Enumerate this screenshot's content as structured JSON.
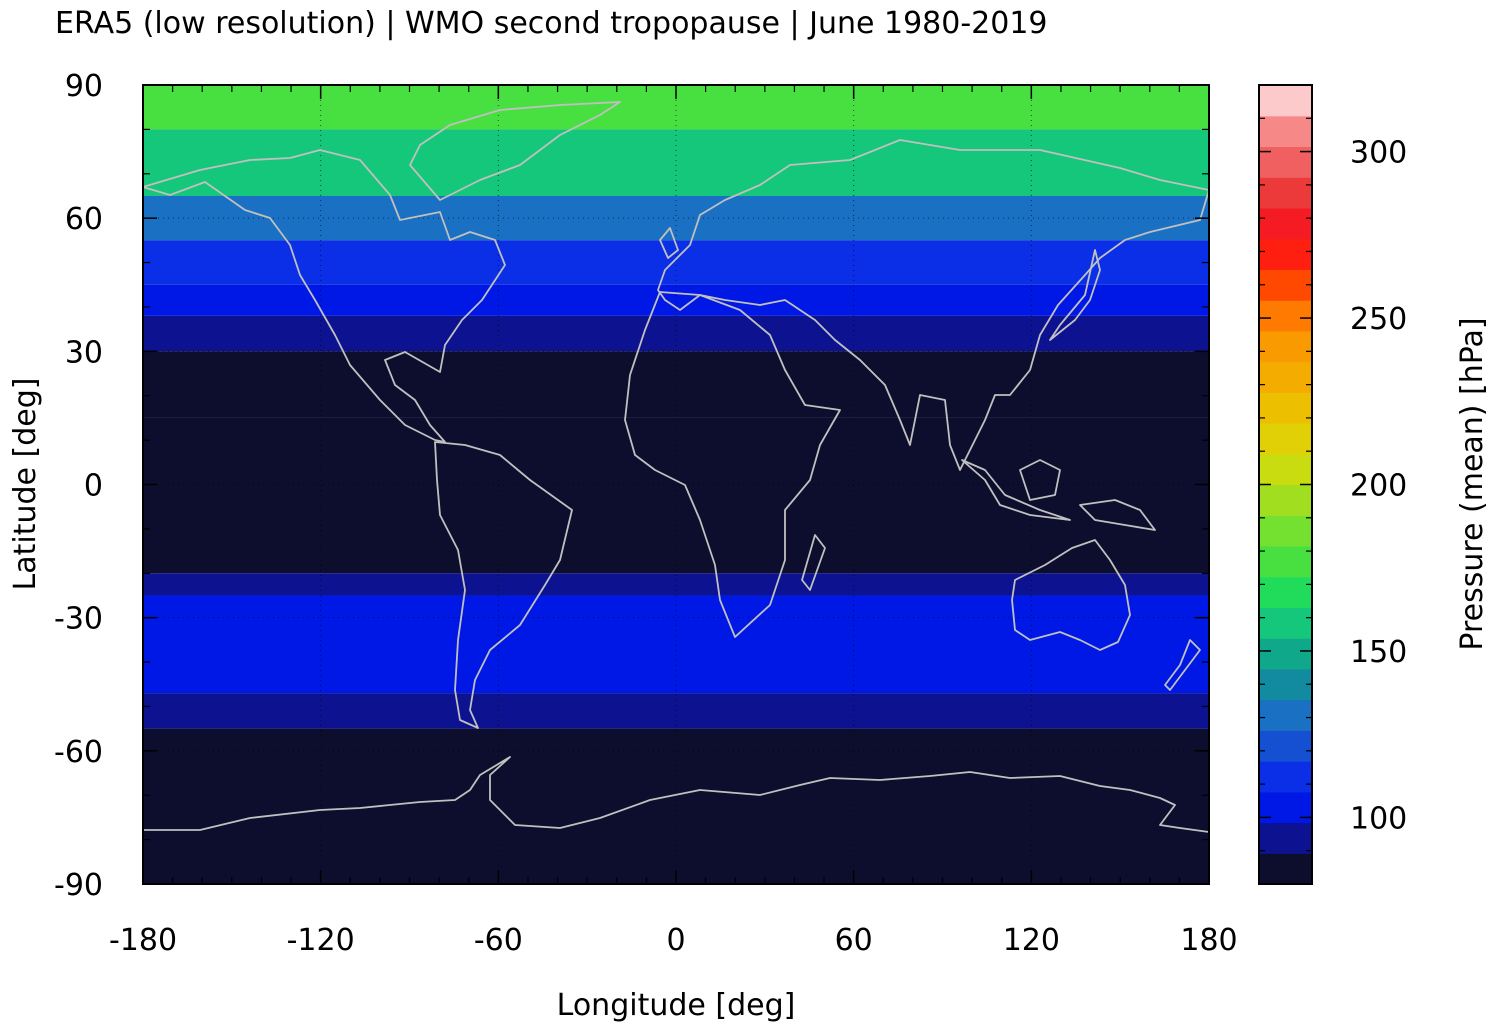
{
  "chart_data": {
    "type": "heatmap",
    "title": "ERA5 (low resolution) | WMO second tropopause | June 1980-2019",
    "xlabel": "Longitude [deg]",
    "ylabel": "Latitude [deg]",
    "xlim": [
      -180,
      180
    ],
    "ylim": [
      -90,
      90
    ],
    "xticks": [
      -180,
      -120,
      -60,
      0,
      60,
      120,
      180
    ],
    "yticks": [
      90,
      60,
      30,
      0,
      -30,
      -60,
      -90
    ],
    "xtick_labels": [
      "-180",
      "-120",
      "-60",
      "0",
      "60",
      "120",
      "180"
    ],
    "ytick_labels": [
      "90",
      "60",
      "30",
      "0",
      "-30",
      "-60",
      "-90"
    ],
    "colorbar": {
      "label": "Pressure (mean) [hPa]",
      "range": [
        80,
        320
      ],
      "ticks": [
        100,
        150,
        200,
        250,
        300
      ],
      "tick_labels": [
        "100",
        "150",
        "200",
        "250",
        "300"
      ],
      "colors": [
        "#0d0e2e",
        "#0c1290",
        "#0018e6",
        "#0a2fe6",
        "#1550d2",
        "#1a70c2",
        "#128aa0",
        "#0fa88a",
        "#14c77a",
        "#20dc5a",
        "#48e040",
        "#74e030",
        "#a2de20",
        "#c9dc10",
        "#e0d005",
        "#ecc000",
        "#f4ac00",
        "#f99a00",
        "#ff7a00",
        "#ff4800",
        "#ff1f10",
        "#f41c22",
        "#ec3a3a",
        "#f06060",
        "#f78888",
        "#fccaca"
      ]
    },
    "latitude_bands": [
      {
        "lat": [
          80,
          90
        ],
        "pressure": 175
      },
      {
        "lat": [
          65,
          80
        ],
        "pressure": 160
      },
      {
        "lat": [
          55,
          65
        ],
        "pressure": 135
      },
      {
        "lat": [
          45,
          55
        ],
        "pressure": 112
      },
      {
        "lat": [
          38,
          45
        ],
        "pressure": 100
      },
      {
        "lat": [
          30,
          38
        ],
        "pressure": 92
      },
      {
        "lat": [
          15,
          30
        ],
        "pressure": 86
      },
      {
        "lat": [
          -20,
          15
        ],
        "pressure": 82
      },
      {
        "lat": [
          -25,
          -20
        ],
        "pressure": 92
      },
      {
        "lat": [
          -47,
          -25
        ],
        "pressure": 104
      },
      {
        "lat": [
          -55,
          -47
        ],
        "pressure": 92
      },
      {
        "lat": [
          -90,
          -55
        ],
        "pressure": 82
      }
    ],
    "grid": true,
    "legend": "colorbar-right"
  },
  "colors": {
    "coastline": "#c0c0c0",
    "frame": "#000000",
    "grid": "#000000"
  }
}
